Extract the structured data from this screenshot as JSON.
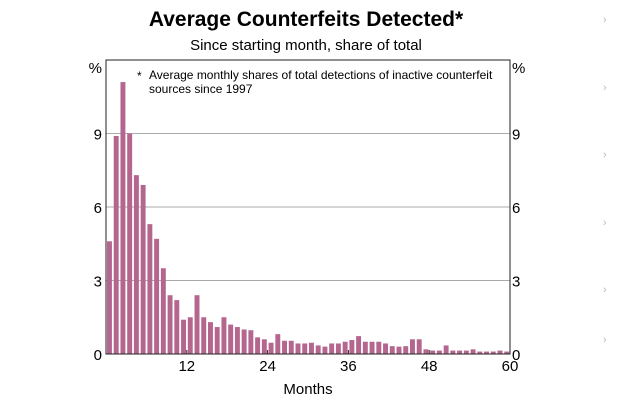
{
  "chart_data": {
    "type": "bar",
    "title": "Average Counterfeits Detected*",
    "subtitle": "Since starting month, share of total",
    "footnote": "* Average monthly shares of total detections of inactive counterfeit sources since 1997",
    "footnote_lines": [
      "Average monthly shares of total detections of inactive counterfeit",
      "sources since 1997"
    ],
    "xlabel": "Months",
    "ylabel_left": "%",
    "ylabel_right": "%",
    "ylim": [
      0,
      12
    ],
    "xlim": [
      0,
      60
    ],
    "yticks": [
      0,
      3,
      6,
      9
    ],
    "xticks": [
      12,
      24,
      36,
      48,
      60
    ],
    "grid": true,
    "bar_color": "#b5668f",
    "x": [
      1,
      2,
      3,
      4,
      5,
      6,
      7,
      8,
      9,
      10,
      11,
      12,
      13,
      14,
      15,
      16,
      17,
      18,
      19,
      20,
      21,
      22,
      23,
      24,
      25,
      26,
      27,
      28,
      29,
      30,
      31,
      32,
      33,
      34,
      35,
      36,
      37,
      38,
      39,
      40,
      41,
      42,
      43,
      44,
      45,
      46,
      47,
      48,
      49,
      50,
      51,
      52,
      53,
      54,
      55,
      56,
      57,
      58,
      59,
      60
    ],
    "values": [
      4.6,
      8.9,
      11.1,
      9.0,
      7.3,
      6.9,
      5.3,
      4.7,
      3.5,
      2.4,
      2.2,
      1.4,
      1.5,
      2.4,
      1.5,
      1.3,
      1.1,
      1.5,
      1.2,
      1.1,
      1.0,
      0.97,
      0.68,
      0.6,
      0.46,
      0.81,
      0.54,
      0.54,
      0.43,
      0.43,
      0.46,
      0.35,
      0.3,
      0.43,
      0.43,
      0.5,
      0.57,
      0.73,
      0.5,
      0.5,
      0.5,
      0.43,
      0.32,
      0.3,
      0.32,
      0.6,
      0.6,
      0.19,
      0.14,
      0.14,
      0.35,
      0.14,
      0.14,
      0.14,
      0.19,
      0.1,
      0.1,
      0.1,
      0.14,
      0.1
    ]
  },
  "side_icons": [
    "chevron-right",
    "chevron-right",
    "chevron-right",
    "chevron-right",
    "chevron-right",
    "chevron-right"
  ]
}
